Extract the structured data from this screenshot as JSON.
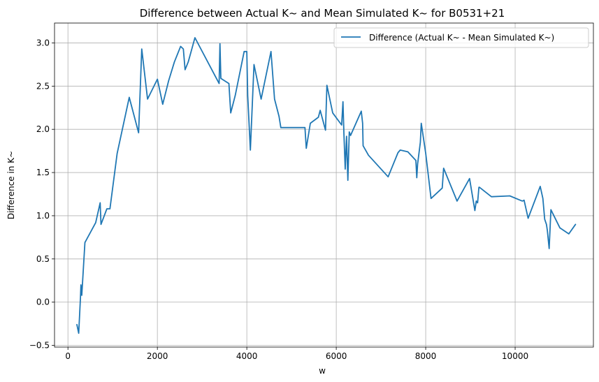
{
  "chart_data": {
    "type": "line",
    "title": "Difference between Actual K~ and Mean Simulated K~ for B0531+21",
    "xlabel": "w",
    "ylabel": "Difference in K~",
    "xlim": [
      -300,
      11750
    ],
    "ylim": [
      -0.52,
      3.23
    ],
    "grid": true,
    "legend_position": "top-right",
    "x_ticks": [
      0,
      2000,
      4000,
      6000,
      8000,
      10000
    ],
    "y_ticks": [
      -0.5,
      0.0,
      0.5,
      1.0,
      1.5,
      2.0,
      2.5,
      3.0
    ],
    "series": [
      {
        "name": "Difference (Actual K~ - Mean Simulated K~)",
        "color": "#1f77b4",
        "x": [
          200,
          240,
          280,
          290,
          310,
          380,
          620,
          720,
          740,
          870,
          940,
          1100,
          1370,
          1580,
          1650,
          1780,
          2000,
          2120,
          2250,
          2380,
          2520,
          2580,
          2620,
          2690,
          2840,
          3380,
          3400,
          3420,
          3600,
          3640,
          3740,
          3940,
          4000,
          4020,
          4080,
          4160,
          4320,
          4540,
          4620,
          4720,
          4760,
          5300,
          5330,
          5420,
          5600,
          5640,
          5760,
          5790,
          5920,
          6120,
          6150,
          6170,
          6200,
          6230,
          6260,
          6290,
          6320,
          6560,
          6590,
          6600,
          6720,
          7160,
          7380,
          7430,
          7600,
          7780,
          7800,
          7820,
          7880,
          7900,
          8000,
          8120,
          8370,
          8400,
          8700,
          8980,
          9100,
          9130,
          9160,
          9190,
          9200,
          9470,
          9880,
          10160,
          10200,
          10290,
          10560,
          10620,
          10660,
          10700,
          10720,
          10760,
          10800,
          11000,
          11200,
          11350
        ],
        "values": [
          -0.26,
          -0.36,
          0.05,
          0.2,
          0.08,
          0.69,
          0.92,
          1.15,
          0.9,
          1.08,
          1.08,
          1.72,
          2.37,
          1.96,
          2.93,
          2.35,
          2.58,
          2.29,
          2.56,
          2.78,
          2.96,
          2.93,
          2.69,
          2.78,
          3.06,
          2.53,
          2.99,
          2.59,
          2.53,
          2.19,
          2.39,
          2.9,
          2.9,
          2.39,
          1.76,
          2.75,
          2.35,
          2.9,
          2.35,
          2.15,
          2.02,
          2.02,
          1.78,
          2.07,
          2.14,
          2.22,
          1.99,
          2.51,
          2.19,
          2.05,
          2.32,
          1.96,
          1.54,
          1.92,
          1.41,
          1.97,
          1.93,
          2.21,
          2.07,
          1.81,
          1.7,
          1.45,
          1.73,
          1.76,
          1.74,
          1.64,
          1.44,
          1.6,
          1.85,
          2.07,
          1.72,
          1.2,
          1.32,
          1.55,
          1.17,
          1.43,
          1.06,
          1.17,
          1.15,
          1.33,
          1.33,
          1.22,
          1.23,
          1.17,
          1.18,
          0.97,
          1.34,
          1.2,
          0.96,
          0.9,
          0.83,
          0.62,
          1.07,
          0.86,
          0.79,
          0.9
        ]
      }
    ]
  }
}
